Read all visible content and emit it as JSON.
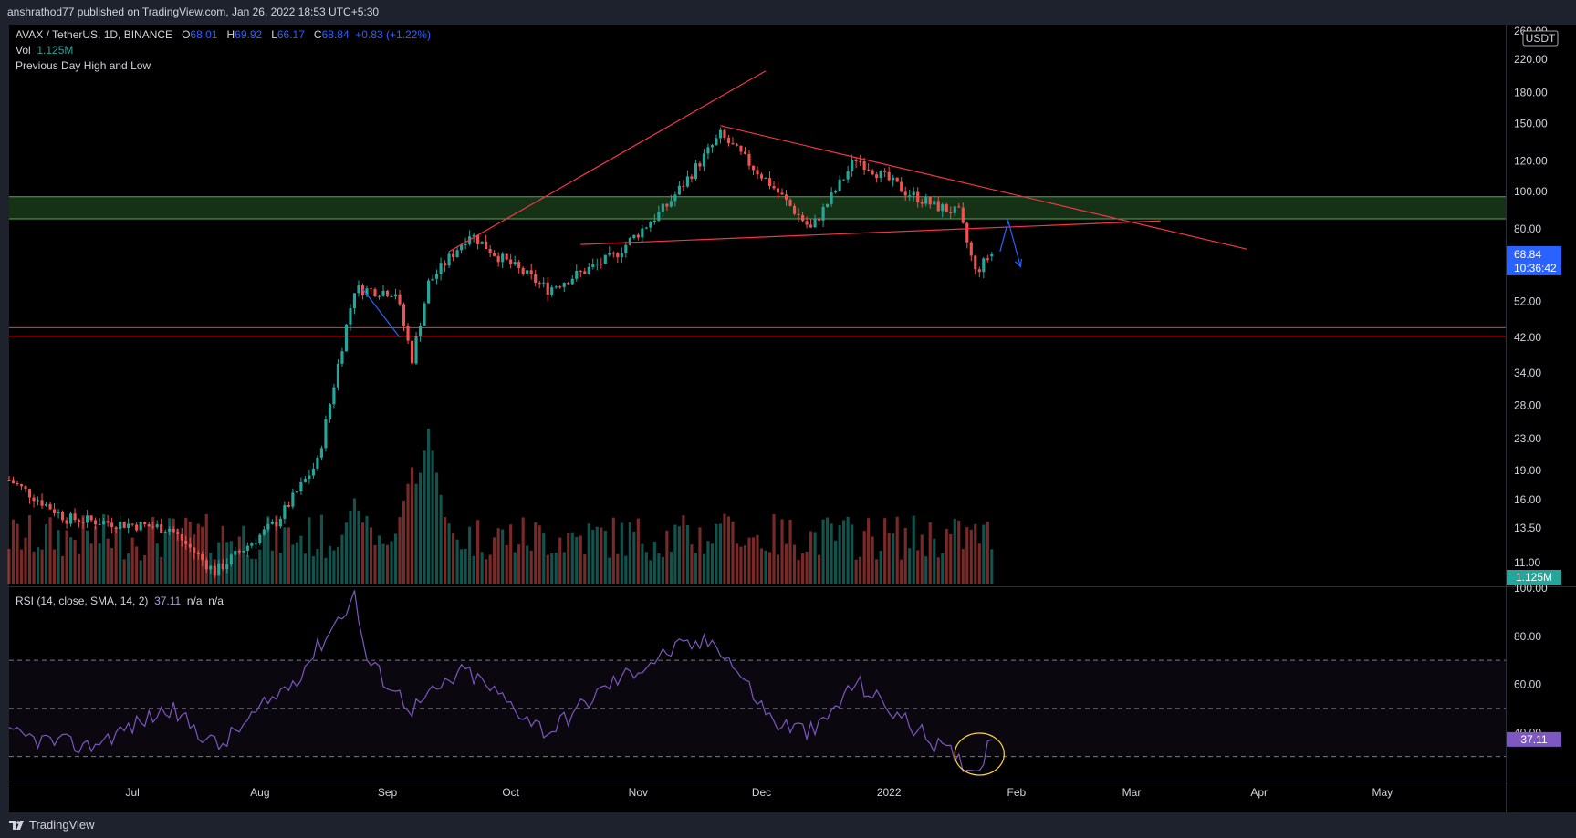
{
  "header": {
    "published": "anshrathod77 published on TradingView.com, Jan 26, 2022 18:53 UTC+5:30"
  },
  "footer": {
    "logo_text": "TradingView"
  },
  "legend": {
    "symbol": "AVAX / TetherUS, 1D, BINANCE",
    "o_label": "O",
    "o_value": "68.01",
    "h_label": "H",
    "h_value": "69.92",
    "l_label": "L",
    "l_value": "66.17",
    "c_label": "C",
    "c_value": "68.84",
    "change": "+0.83 (+1.22%)",
    "vol_label": "Vol",
    "vol_value": "1.125M",
    "indicator": "Previous Day High and Low",
    "rsi_label": "RSI (14, close, SMA, 14, 2)",
    "rsi_value": "37.11",
    "rsi_na1": "n/a",
    "rsi_na2": "n/a"
  },
  "price_axis": {
    "currency": "USDT",
    "ticks": [
      "260.00",
      "220.00",
      "180.00",
      "150.00",
      "120.00",
      "100.00",
      "80.00",
      "52.00",
      "42.00",
      "34.00",
      "28.00",
      "23.00",
      "19.00",
      "16.00",
      "13.50",
      "11.00"
    ],
    "last_price": "68.84",
    "countdown": "10:36:42",
    "volume_badge": "1.125M"
  },
  "rsi_axis": {
    "ticks": [
      "100.00",
      "80.00",
      "60.00",
      "40.00"
    ],
    "badge": "37.11"
  },
  "time_axis": [
    "Jul",
    "Aug",
    "Sep",
    "Oct",
    "Nov",
    "Dec",
    "2022",
    "Feb",
    "Mar",
    "Apr",
    "May"
  ],
  "colors": {
    "up": "#26a69a",
    "down": "#ef5350",
    "rsi": "#7e57c2",
    "zone": "#4caf50",
    "trend": "#f23645",
    "arrow": "#2962ff",
    "highlight": "#fdd835"
  },
  "chart_data": {
    "type": "candlestick",
    "title": "AVAX / TetherUS, 1D, BINANCE",
    "y_scale": "log",
    "ylim": [
      9.5,
      270
    ],
    "x_range": [
      "2021-06-01",
      "2022-05-31"
    ],
    "last_close": 68.84,
    "anchor_closes": [
      {
        "date": "2021-06-01",
        "close": 18.0
      },
      {
        "date": "2021-06-15",
        "close": 14.3
      },
      {
        "date": "2021-07-10",
        "close": 13.5
      },
      {
        "date": "2021-07-21",
        "close": 10.4
      },
      {
        "date": "2021-08-05",
        "close": 14.0
      },
      {
        "date": "2021-08-15",
        "close": 20.0
      },
      {
        "date": "2021-08-22",
        "close": 45.0
      },
      {
        "date": "2021-08-24",
        "close": 56.0
      },
      {
        "date": "2021-09-03",
        "close": 55.0
      },
      {
        "date": "2021-09-07",
        "close": 37.0
      },
      {
        "date": "2021-09-11",
        "close": 58.0
      },
      {
        "date": "2021-09-21",
        "close": 78.0
      },
      {
        "date": "2021-09-28",
        "close": 68.0
      },
      {
        "date": "2021-10-10",
        "close": 56.0
      },
      {
        "date": "2021-10-26",
        "close": 68.0
      },
      {
        "date": "2021-11-08",
        "close": 92.0
      },
      {
        "date": "2021-11-21",
        "close": 140.0
      },
      {
        "date": "2021-12-03",
        "close": 105.0
      },
      {
        "date": "2021-12-13",
        "close": 80.0
      },
      {
        "date": "2021-12-24",
        "close": 122.0
      },
      {
        "date": "2022-01-05",
        "close": 100.0
      },
      {
        "date": "2022-01-12",
        "close": 92.0
      },
      {
        "date": "2022-01-18",
        "close": 88.0
      },
      {
        "date": "2022-01-22",
        "close": 62.0
      },
      {
        "date": "2022-01-26",
        "close": 68.84
      }
    ],
    "volume_peaks": [
      {
        "date": "2021-08-24",
        "volume_rel": 0.55
      },
      {
        "date": "2021-09-07",
        "volume_rel": 0.75
      },
      {
        "date": "2021-09-11",
        "volume_rel": 1.0
      },
      {
        "date": "2021-11-22",
        "volume_rel": 0.45
      },
      {
        "date": "2022-01-22",
        "volume_rel": 0.3
      }
    ],
    "rsi": {
      "period": 14,
      "ylim": [
        20,
        100
      ],
      "bands": [
        30,
        50,
        70
      ],
      "last": 37.11,
      "anchors": [
        {
          "date": "2021-06-01",
          "value": 39
        },
        {
          "date": "2021-06-20",
          "value": 34
        },
        {
          "date": "2021-07-10",
          "value": 50
        },
        {
          "date": "2021-07-22",
          "value": 34
        },
        {
          "date": "2021-08-10",
          "value": 63
        },
        {
          "date": "2021-08-24",
          "value": 97
        },
        {
          "date": "2021-08-27",
          "value": 70
        },
        {
          "date": "2021-09-07",
          "value": 50
        },
        {
          "date": "2021-09-20",
          "value": 66
        },
        {
          "date": "2021-10-10",
          "value": 40
        },
        {
          "date": "2021-10-25",
          "value": 60
        },
        {
          "date": "2021-11-10",
          "value": 75
        },
        {
          "date": "2021-11-20",
          "value": 78
        },
        {
          "date": "2021-12-04",
          "value": 44
        },
        {
          "date": "2021-12-14",
          "value": 40
        },
        {
          "date": "2021-12-24",
          "value": 61
        },
        {
          "date": "2022-01-10",
          "value": 38
        },
        {
          "date": "2022-01-22",
          "value": 24
        },
        {
          "date": "2022-01-26",
          "value": 37.11
        }
      ]
    },
    "horizontal_zones": [
      {
        "name": "",
        "low": 85,
        "high": 97,
        "color": "green"
      },
      {
        "name": "",
        "low": 42.3,
        "high": 44.5,
        "color": "red"
      }
    ],
    "trendlines": [
      {
        "from": {
          "date": "2021-09-16",
          "price": 70
        },
        "to": {
          "date": "2021-12-02",
          "price": 205
        }
      },
      {
        "from": {
          "date": "2021-11-21",
          "price": 148
        },
        "to": {
          "date": "2022-03-29",
          "price": 71
        }
      },
      {
        "from": {
          "date": "2021-10-18",
          "price": 73
        },
        "to": {
          "date": "2022-03-08",
          "price": 84
        }
      }
    ]
  }
}
